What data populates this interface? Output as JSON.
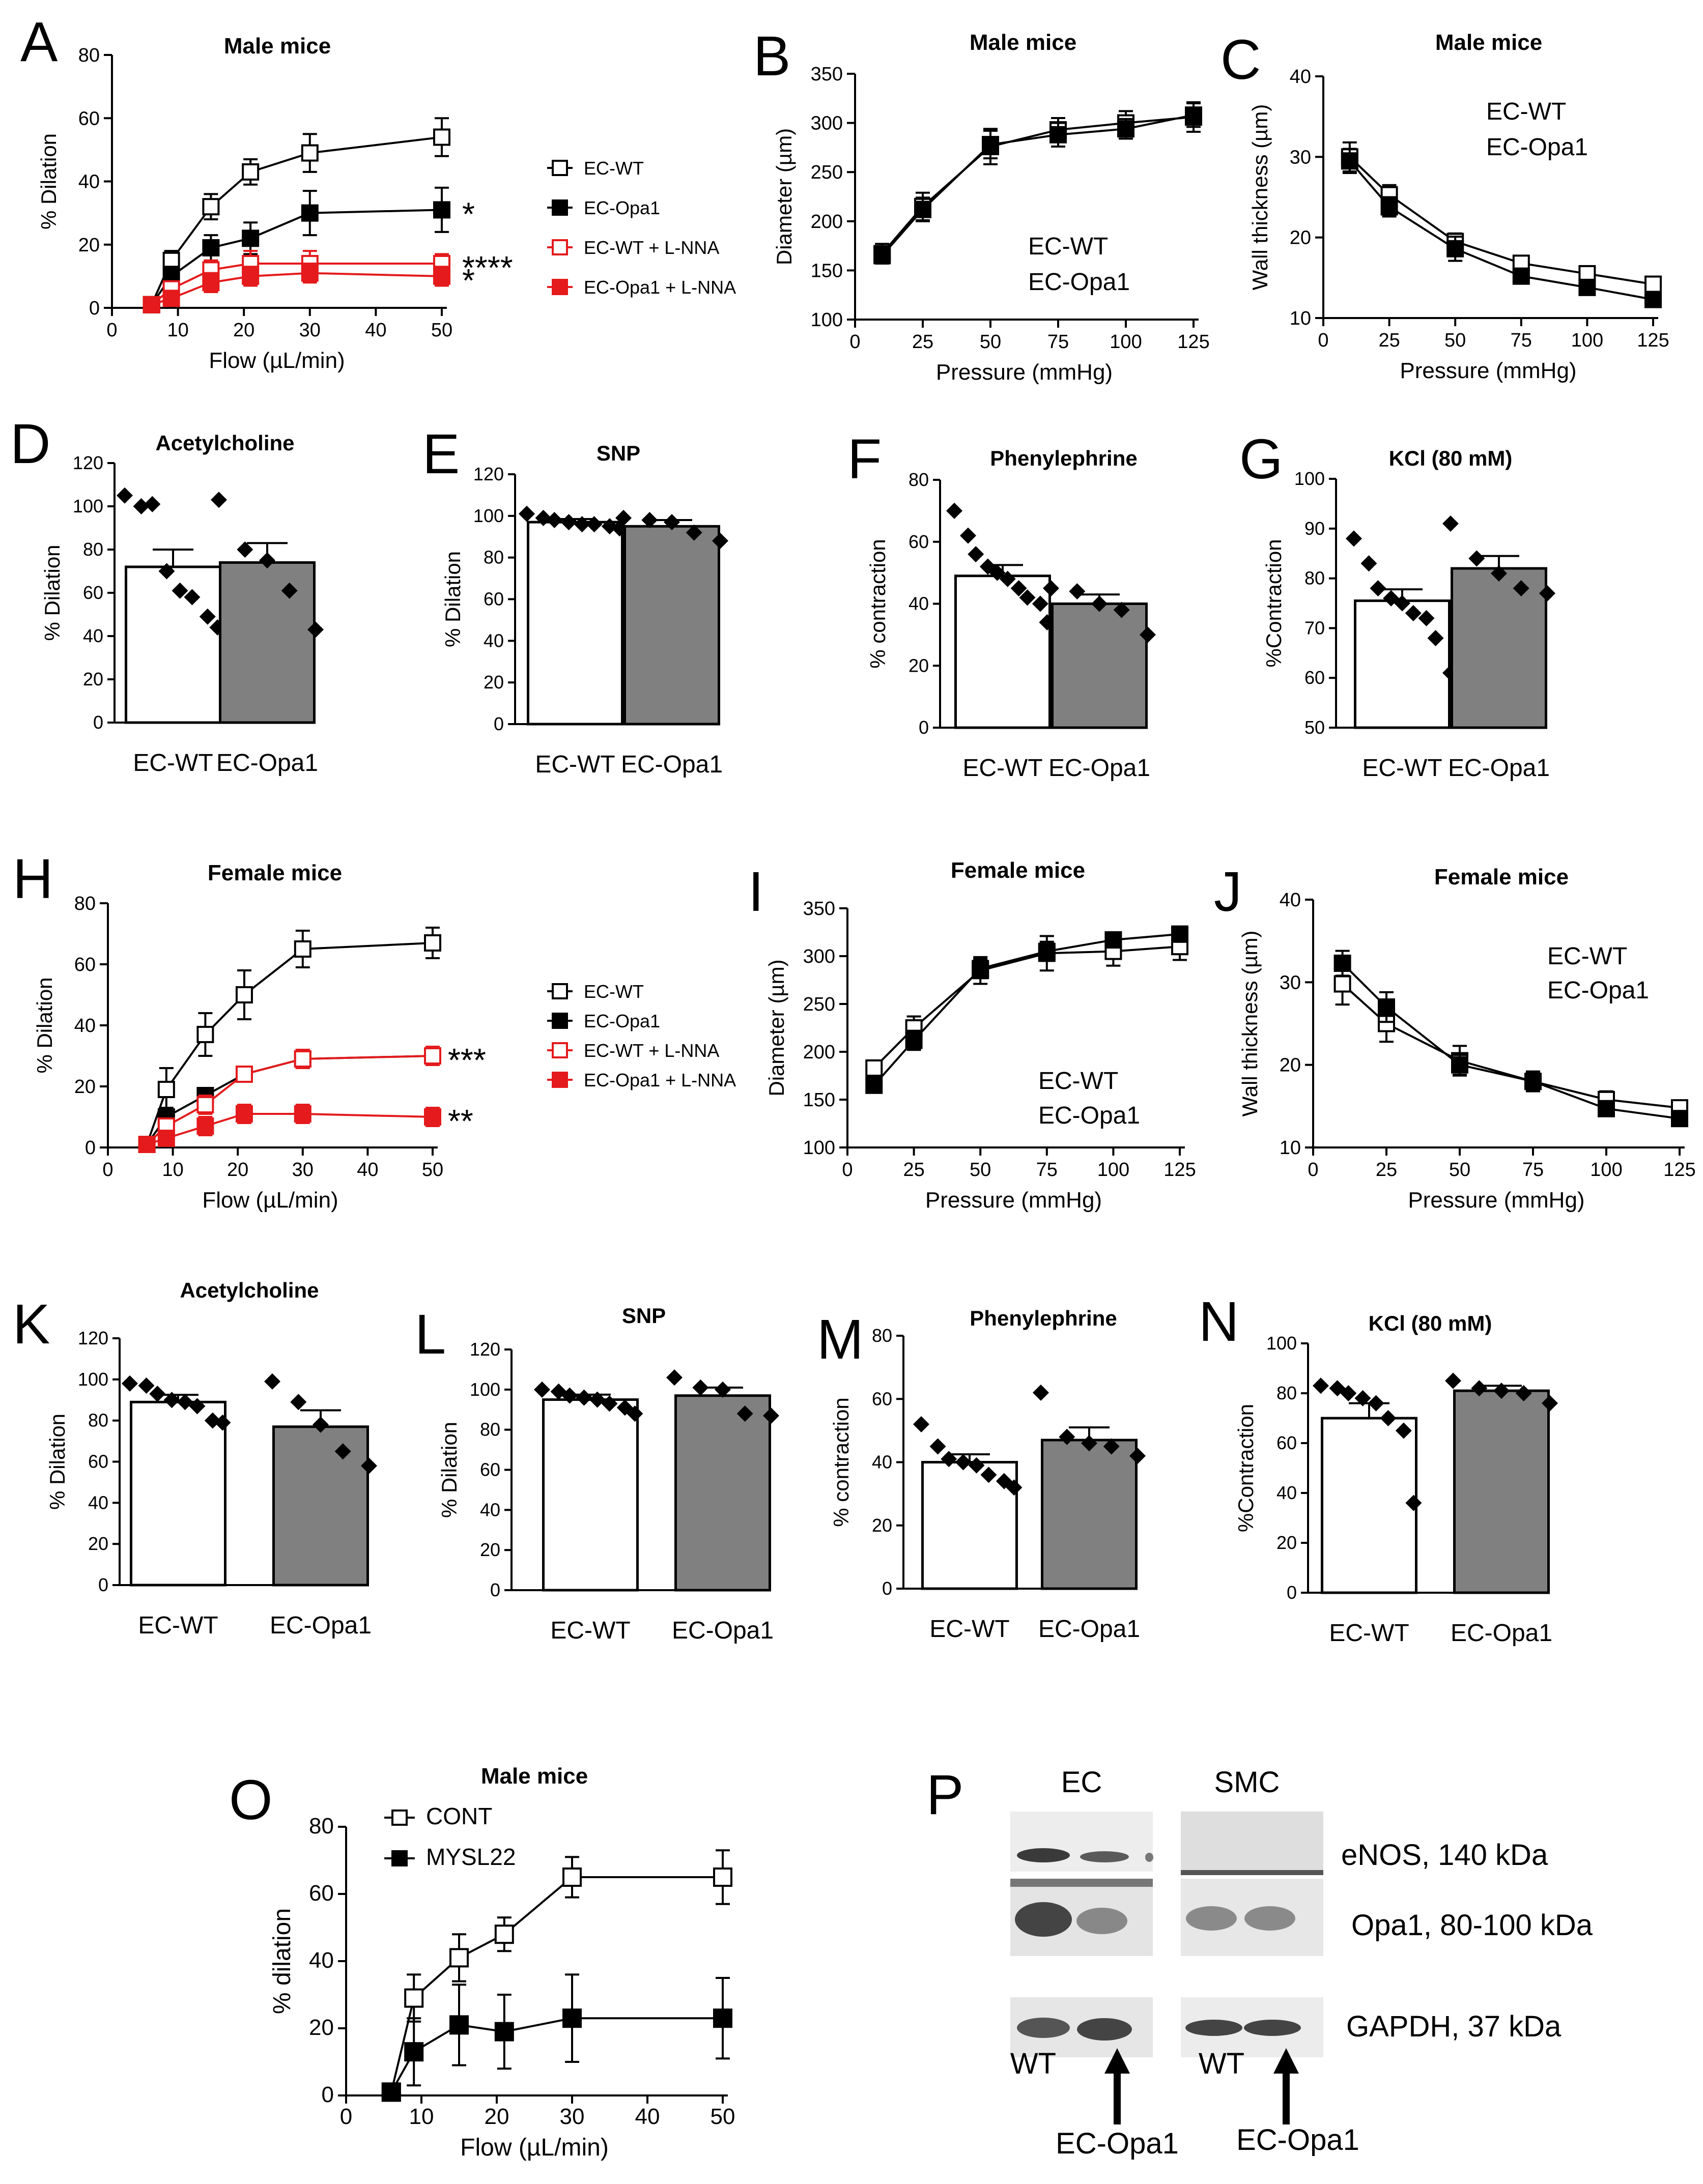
{
  "figure": {
    "blot": {
      "label": "P",
      "header_ec": "EC",
      "header_smc": "SMC",
      "rows": [
        "eNOS, 140 kDa",
        "Opa1, 80-100 kDa",
        "GAPDH, 37 kDa"
      ],
      "lane_wt": "WT",
      "lane_opa1": "EC-Opa1"
    }
  },
  "chart_data": [
    {
      "panel": "A",
      "type": "line",
      "title": "Male mice",
      "xlabel": "Flow (µL/min)",
      "ylabel": "% Dilation",
      "xlim": [
        0,
        50
      ],
      "ylim": [
        0,
        80
      ],
      "xticks": [
        0,
        10,
        20,
        30,
        40,
        50
      ],
      "yticks": [
        0,
        20,
        40,
        60,
        80
      ],
      "x": [
        6,
        9,
        15,
        21,
        30,
        50
      ],
      "series": [
        {
          "name": "EC-WT",
          "color": "#000000",
          "filled": false,
          "values": [
            1,
            15,
            32,
            43,
            49,
            54
          ],
          "errors": [
            0.5,
            3,
            4,
            4,
            6,
            6
          ],
          "sig": ""
        },
        {
          "name": "EC-Opa1",
          "color": "#000000",
          "filled": true,
          "values": [
            1,
            10,
            19,
            22,
            30,
            31
          ],
          "errors": [
            0.5,
            3,
            4,
            5,
            7,
            7
          ],
          "sig": "*"
        },
        {
          "name": "EC-WT + L-NNA",
          "color": "#e41a1c",
          "filled": false,
          "values": [
            1,
            6,
            12,
            14,
            14,
            14
          ],
          "errors": [
            0.5,
            2,
            3,
            4,
            4,
            3
          ],
          "sig": "****"
        },
        {
          "name": "EC-Opa1 + L-NNA",
          "color": "#e41a1c",
          "filled": true,
          "values": [
            1,
            3,
            8,
            10,
            11,
            10
          ],
          "errors": [
            0.5,
            2,
            3,
            3,
            3,
            3
          ],
          "sig": "*"
        }
      ]
    },
    {
      "panel": "B",
      "type": "line",
      "title": "Male mice",
      "xlabel": "Pressure (mmHg)",
      "ylabel": "Diameter (µm)",
      "xlim": [
        0,
        125
      ],
      "ylim": [
        100,
        350
      ],
      "xticks": [
        0,
        25,
        50,
        75,
        100,
        125
      ],
      "yticks": [
        100,
        150,
        200,
        250,
        300,
        350
      ],
      "x": [
        10,
        25,
        50,
        75,
        100,
        125
      ],
      "series": [
        {
          "name": "EC-WT",
          "color": "#000000",
          "filled": false,
          "values": [
            167,
            215,
            276,
            293,
            300,
            306
          ],
          "errors": [
            10,
            14,
            18,
            12,
            12,
            15
          ],
          "sig": ""
        },
        {
          "name": "EC-Opa1",
          "color": "#000000",
          "filled": true,
          "values": [
            165,
            212,
            278,
            288,
            294,
            308
          ],
          "errors": [
            8,
            12,
            14,
            12,
            10,
            12
          ],
          "sig": ""
        }
      ],
      "inset_labels": [
        "EC-WT",
        "EC-Opa1"
      ]
    },
    {
      "panel": "C",
      "type": "line",
      "title": "Male mice",
      "xlabel": "Pressure (mmHg)",
      "ylabel": "Wall thickness (µm)",
      "xlim": [
        0,
        125
      ],
      "ylim": [
        10,
        40
      ],
      "xticks": [
        0,
        25,
        50,
        75,
        100,
        125
      ],
      "yticks": [
        10,
        20,
        30,
        40
      ],
      "x": [
        10,
        25,
        50,
        75,
        100,
        125
      ],
      "series": [
        {
          "name": "EC-WT",
          "color": "#000000",
          "filled": false,
          "values": [
            30,
            25.3,
            19.5,
            16.8,
            15.5,
            14.2
          ],
          "errors": [
            1.8,
            1.2,
            1,
            0.8,
            0.7,
            0.6
          ],
          "sig": ""
        },
        {
          "name": "EC-Opa1",
          "color": "#000000",
          "filled": true,
          "values": [
            29.5,
            23.8,
            18.6,
            15.2,
            13.8,
            12.3
          ],
          "errors": [
            1.5,
            1.2,
            1.5,
            0.8,
            0.7,
            0.6
          ],
          "sig": ""
        }
      ],
      "inset_labels": [
        "EC-WT",
        "EC-Opa1"
      ]
    },
    {
      "panel": "D",
      "type": "bar",
      "title": "Acetylcholine",
      "ylabel": "% Dilation",
      "ylim": [
        0,
        120
      ],
      "yticks": [
        0,
        20,
        40,
        60,
        80,
        100,
        120
      ],
      "categories": [
        "EC-WT",
        "EC-Opa1"
      ],
      "values": [
        72,
        74
      ],
      "errors": [
        8,
        9
      ],
      "points": [
        [
          105,
          100,
          101,
          70,
          61,
          58,
          49,
          44
        ],
        [
          103,
          80,
          75,
          61,
          43
        ]
      ]
    },
    {
      "panel": "E",
      "type": "bar",
      "title": "SNP",
      "ylabel": "% Dilation",
      "ylim": [
        0,
        120
      ],
      "yticks": [
        0,
        20,
        40,
        60,
        80,
        100,
        120
      ],
      "categories": [
        "EC-WT",
        "EC-Opa1"
      ],
      "values": [
        97,
        95
      ],
      "errors": [
        1.5,
        3
      ],
      "points": [
        [
          101,
          99,
          98,
          97,
          96,
          96,
          95,
          94
        ],
        [
          99,
          98,
          97,
          92,
          88
        ]
      ]
    },
    {
      "panel": "F",
      "type": "bar",
      "title": "Phenylephrine",
      "ylabel": "% contraction",
      "ylim": [
        0,
        80
      ],
      "yticks": [
        0,
        20,
        40,
        60,
        80
      ],
      "categories": [
        "EC-WT",
        "EC-Opa1"
      ],
      "values": [
        49,
        40
      ],
      "errors": [
        3.5,
        3
      ],
      "points": [
        [
          70,
          62,
          56,
          52,
          50,
          48,
          45,
          42,
          40,
          34
        ],
        [
          45,
          44,
          40,
          38,
          30
        ]
      ]
    },
    {
      "panel": "G",
      "type": "bar",
      "title": "KCl (80 mM)",
      "ylabel": "%Contraction",
      "ylim": [
        50,
        100
      ],
      "yticks": [
        50,
        60,
        70,
        80,
        90,
        100
      ],
      "categories": [
        "EC-WT",
        "EC-Opa1"
      ],
      "values": [
        75.5,
        82
      ],
      "errors": [
        2.3,
        2.5
      ],
      "points": [
        [
          88,
          83,
          78,
          76,
          75,
          73,
          72,
          68,
          61
        ],
        [
          91,
          84,
          81,
          78,
          77
        ]
      ]
    },
    {
      "panel": "H",
      "type": "line",
      "title": "Female mice",
      "xlabel": "Flow (µL/min)",
      "ylabel": "% Dilation",
      "xlim": [
        0,
        50
      ],
      "ylim": [
        0,
        80
      ],
      "xticks": [
        0,
        10,
        20,
        30,
        40,
        50
      ],
      "yticks": [
        0,
        20,
        40,
        60,
        80
      ],
      "x": [
        6,
        9,
        15,
        21,
        30,
        50
      ],
      "series": [
        {
          "name": "EC-WT",
          "color": "#000000",
          "filled": false,
          "values": [
            1,
            19,
            37,
            50,
            65,
            67
          ],
          "errors": [
            0.5,
            7,
            7,
            8,
            6,
            5
          ],
          "sig": ""
        },
        {
          "name": "EC-Opa1",
          "color": "#000000",
          "filled": true,
          "values": [
            1,
            10,
            17,
            24,
            29,
            30
          ],
          "errors": [
            0.5,
            3,
            2,
            2,
            3,
            3
          ],
          "sig": "***"
        },
        {
          "name": "EC-WT + L-NNA",
          "color": "#e41a1c",
          "filled": false,
          "values": [
            1,
            7,
            14,
            24,
            29,
            30
          ],
          "errors": [
            0.5,
            2,
            3,
            2,
            3,
            3
          ],
          "sig": "***"
        },
        {
          "name": "EC-Opa1 + L-NNA",
          "color": "#e41a1c",
          "filled": true,
          "values": [
            1,
            3,
            7,
            11,
            11,
            10
          ],
          "errors": [
            0.5,
            2,
            3,
            3,
            3,
            3
          ],
          "sig": "**"
        }
      ]
    },
    {
      "panel": "I",
      "type": "line",
      "title": "Female mice",
      "xlabel": "Pressure (mmHg)",
      "ylabel": "Diameter (µm)",
      "xlim": [
        0,
        125
      ],
      "ylim": [
        100,
        350
      ],
      "xticks": [
        0,
        25,
        50,
        75,
        100,
        125
      ],
      "yticks": [
        100,
        150,
        200,
        250,
        300,
        350
      ],
      "x": [
        10,
        25,
        50,
        75,
        100,
        125
      ],
      "series": [
        {
          "name": "EC-WT",
          "color": "#000000",
          "filled": false,
          "values": [
            183,
            225,
            285,
            303,
            305,
            310
          ],
          "errors": [
            8,
            12,
            14,
            18,
            15,
            14
          ],
          "sig": ""
        },
        {
          "name": "EC-Opa1",
          "color": "#000000",
          "filled": true,
          "values": [
            165,
            212,
            287,
            305,
            317,
            323
          ],
          "errors": [
            6,
            10,
            10,
            10,
            8,
            8
          ],
          "sig": ""
        }
      ],
      "inset_labels": [
        "EC-WT",
        "EC-Opa1"
      ]
    },
    {
      "panel": "J",
      "type": "line",
      "title": "Female mice",
      "xlabel": "Pressure (mmHg)",
      "ylabel": "Wall thickness (µm)",
      "xlim": [
        0,
        125
      ],
      "ylim": [
        10,
        40
      ],
      "xticks": [
        0,
        25,
        50,
        75,
        100,
        125
      ],
      "yticks": [
        10,
        20,
        30,
        40
      ],
      "x": [
        10,
        25,
        50,
        75,
        100,
        125
      ],
      "series": [
        {
          "name": "EC-WT",
          "color": "#000000",
          "filled": false,
          "values": [
            29.8,
            25,
            20.5,
            18,
            15.8,
            14.8
          ],
          "errors": [
            2.5,
            2.2,
            1.8,
            1.2,
            1,
            0.8
          ],
          "sig": ""
        },
        {
          "name": "EC-Opa1",
          "color": "#000000",
          "filled": true,
          "values": [
            32.3,
            27,
            20,
            18,
            14.7,
            13.5
          ],
          "errors": [
            1.5,
            1.8,
            1.2,
            1,
            0.8,
            0.8
          ],
          "sig": ""
        }
      ],
      "inset_labels": [
        "EC-WT",
        "EC-Opa1"
      ]
    },
    {
      "panel": "K",
      "type": "bar",
      "title": "Acetylcholine",
      "ylabel": "% Dilation",
      "ylim": [
        0,
        120
      ],
      "yticks": [
        0,
        20,
        40,
        60,
        80,
        100,
        120
      ],
      "categories": [
        "EC-WT",
        "EC-Opa1"
      ],
      "values": [
        89,
        77
      ],
      "errors": [
        3.5,
        8
      ],
      "points": [
        [
          98,
          97,
          93,
          90,
          89,
          87,
          80,
          79
        ],
        [
          99,
          89,
          78,
          65,
          58
        ]
      ]
    },
    {
      "panel": "L",
      "type": "bar",
      "title": "SNP",
      "ylabel": "% Dilation",
      "ylim": [
        0,
        120
      ],
      "yticks": [
        0,
        20,
        40,
        60,
        80,
        100,
        120
      ],
      "categories": [
        "EC-WT",
        "EC-Opa1"
      ],
      "values": [
        95,
        97
      ],
      "errors": [
        2.5,
        4
      ],
      "points": [
        [
          100,
          99,
          97,
          96,
          95,
          93,
          91,
          88
        ],
        [
          106,
          101,
          100,
          88,
          87
        ]
      ]
    },
    {
      "panel": "M",
      "type": "bar",
      "title": "Phenylephrine",
      "ylabel": "% contraction",
      "ylim": [
        0,
        80
      ],
      "yticks": [
        0,
        20,
        40,
        60,
        80
      ],
      "categories": [
        "EC-WT",
        "EC-Opa1"
      ],
      "values": [
        40,
        47
      ],
      "errors": [
        2.5,
        4
      ],
      "points": [
        [
          52,
          45,
          41,
          40,
          39,
          36,
          34,
          32
        ],
        [
          62,
          48,
          46,
          45,
          42
        ]
      ]
    },
    {
      "panel": "N",
      "type": "bar",
      "title": "KCl (80 mM)",
      "ylabel": "%Contraction",
      "ylim": [
        0,
        100
      ],
      "yticks": [
        0,
        20,
        40,
        60,
        80,
        100
      ],
      "categories": [
        "EC-WT",
        "EC-Opa1"
      ],
      "values": [
        70,
        81
      ],
      "errors": [
        6,
        2
      ],
      "points": [
        [
          83,
          82,
          80,
          78,
          76,
          70,
          65,
          36
        ],
        [
          85,
          82,
          81,
          80,
          76
        ]
      ]
    },
    {
      "panel": "O",
      "type": "line",
      "title": "Male mice",
      "xlabel": "Flow (µL/min)",
      "ylabel": "% dilation",
      "xlim": [
        0,
        50
      ],
      "ylim": [
        0,
        80
      ],
      "xticks": [
        0,
        10,
        20,
        30,
        40,
        50
      ],
      "yticks": [
        0,
        20,
        40,
        60,
        80
      ],
      "x": [
        6,
        9,
        15,
        21,
        30,
        50
      ],
      "series": [
        {
          "name": "CONT",
          "color": "#000000",
          "filled": false,
          "values": [
            1,
            29,
            41,
            48,
            65,
            65
          ],
          "errors": [
            0.5,
            7,
            7,
            5,
            6,
            8
          ],
          "sig": ""
        },
        {
          "name": "MYSL22",
          "color": "#000000",
          "filled": true,
          "values": [
            1,
            13,
            21,
            19,
            23,
            23
          ],
          "errors": [
            0.5,
            10,
            12,
            11,
            13,
            12
          ],
          "sig": ""
        }
      ]
    }
  ]
}
